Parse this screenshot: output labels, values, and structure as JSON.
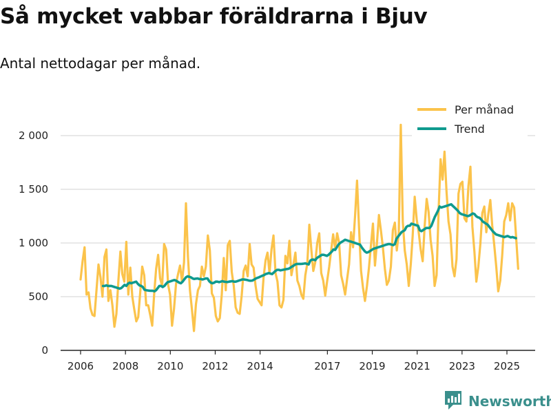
{
  "title": "Så mycket vabbar föräldrarna i Bjuv",
  "subtitle": "Antal nettodagar per månad.",
  "brand": {
    "name": "Newsworthy",
    "icon": "bar-chart-logo-icon",
    "color": "#3a8f8c"
  },
  "chart_data": {
    "type": "line",
    "title": "Så mycket vabbar föräldrarna i Bjuv",
    "subtitle": "Antal nettodagar per månad.",
    "xlabel": "",
    "ylabel": "",
    "xlim": [
      2006,
      2025.9
    ],
    "ylim": [
      0,
      2100
    ],
    "yticks": [
      0,
      500,
      1000,
      1500,
      2000
    ],
    "ytick_labels": [
      "0",
      "500",
      "1 000",
      "1 500",
      "2 000"
    ],
    "xticks": [
      2006,
      2008,
      2010,
      2012,
      2014,
      2017,
      2019,
      2021,
      2023,
      2025
    ],
    "xtick_labels": [
      "2006",
      "2008",
      "2010",
      "2012",
      "2014",
      "2017",
      "2019",
      "2021",
      "2023",
      "2025"
    ],
    "grid": true,
    "legend_position": "top-right",
    "series": [
      {
        "name": "Per månad",
        "color": "#fbc34b",
        "start": 2006.0,
        "step_months": 1,
        "values": [
          660,
          830,
          960,
          520,
          540,
          390,
          330,
          320,
          560,
          800,
          680,
          500,
          870,
          940,
          460,
          560,
          420,
          220,
          340,
          650,
          920,
          710,
          640,
          1010,
          520,
          770,
          500,
          380,
          270,
          310,
          540,
          780,
          700,
          420,
          420,
          330,
          230,
          520,
          760,
          890,
          670,
          600,
          990,
          940,
          610,
          520,
          230,
          390,
          620,
          710,
          790,
          640,
          820,
          1370,
          870,
          560,
          380,
          180,
          430,
          560,
          600,
          780,
          690,
          780,
          1070,
          930,
          530,
          490,
          320,
          270,
          300,
          520,
          860,
          560,
          980,
          1020,
          730,
          600,
          400,
          350,
          340,
          510,
          740,
          790,
          690,
          990,
          800,
          770,
          600,
          480,
          450,
          420,
          680,
          840,
          910,
          720,
          940,
          1070,
          720,
          640,
          420,
          400,
          470,
          880,
          810,
          1020,
          700,
          800,
          910,
          650,
          600,
          520,
          480,
          700,
          810,
          1170,
          940,
          740,
          820,
          1000,
          1090,
          720,
          650,
          510,
          650,
          780,
          930,
          1080,
          950,
          1090,
          1000,
          700,
          620,
          520,
          660,
          800,
          1100,
          960,
          1250,
          1580,
          1140,
          740,
          580,
          460,
          600,
          770,
          980,
          1180,
          790,
          1000,
          1260,
          1120,
          960,
          760,
          610,
          650,
          780,
          1120,
          1190,
          930,
          1100,
          2100,
          1200,
          930,
          800,
          600,
          800,
          1070,
          1430,
          1220,
          1100,
          940,
          830,
          1160,
          1410,
          1290,
          1030,
          880,
          600,
          700,
          1300,
          1780,
          1590,
          1850,
          1480,
          1200,
          1080,
          780,
          690,
          850,
          1460,
          1550,
          1570,
          1230,
          1200,
          1530,
          1710,
          1150,
          920,
          640,
          780,
          990,
          1280,
          1340,
          1100,
          1270,
          1400,
          1160,
          980,
          780,
          550,
          650,
          890,
          1200,
          1260,
          1370,
          1210,
          1370,
          1330,
          1050,
          760
        ],
        "x_range": [
          2006.0,
          2025.5
        ]
      },
      {
        "name": "Trend",
        "color": "#0f9a8e",
        "start": 2007.0,
        "step_months": 1,
        "values": [
          600,
          600,
          605,
          600,
          600,
          600,
          595,
          590,
          585,
          580,
          575,
          580,
          595,
          610,
          600,
          620,
          630,
          625,
          630,
          635,
          640,
          620,
          605,
          600,
          590,
          565,
          560,
          558,
          556,
          555,
          555,
          550,
          560,
          580,
          600,
          600,
          590,
          600,
          620,
          635,
          640,
          645,
          650,
          655,
          650,
          640,
          630,
          625,
          640,
          660,
          680,
          690,
          685,
          680,
          670,
          665,
          668,
          670,
          665,
          665,
          660,
          665,
          670,
          670,
          645,
          630,
          625,
          630,
          640,
          640,
          635,
          640,
          645,
          640,
          638,
          636,
          640,
          642,
          645,
          640,
          640,
          645,
          650,
          655,
          660,
          660,
          658,
          655,
          650,
          648,
          650,
          658,
          668,
          675,
          680,
          688,
          695,
          700,
          710,
          715,
          720,
          715,
          710,
          725,
          740,
          750,
          750,
          745,
          748,
          752,
          755,
          758,
          760,
          770,
          780,
          790,
          800,
          805,
          805,
          805,
          806,
          808,
          810,
          805,
          800,
          835,
          845,
          845,
          840,
          860,
          870,
          880,
          890,
          890,
          885,
          880,
          890,
          905,
          920,
          940,
          935,
          960,
          985,
          1000,
          1010,
          1020,
          1030,
          1025,
          1020,
          1015,
          1010,
          1005,
          1000,
          995,
          990,
          985,
          960,
          940,
          920,
          910,
          915,
          925,
          935,
          945,
          950,
          955,
          960,
          965,
          970,
          975,
          980,
          985,
          990,
          990,
          985,
          980,
          990,
          1040,
          1060,
          1080,
          1100,
          1110,
          1120,
          1150,
          1160,
          1160,
          1180,
          1175,
          1170,
          1165,
          1160,
          1120,
          1110,
          1120,
          1130,
          1140,
          1140,
          1140,
          1160,
          1200,
          1240,
          1270,
          1300,
          1340,
          1330,
          1335,
          1340,
          1345,
          1350,
          1355,
          1360,
          1345,
          1330,
          1315,
          1300,
          1280,
          1270,
          1265,
          1260,
          1255,
          1250,
          1255,
          1265,
          1275,
          1270,
          1250,
          1240,
          1235,
          1220,
          1200,
          1190,
          1180,
          1170,
          1150,
          1130,
          1110,
          1095,
          1080,
          1075,
          1070,
          1065,
          1060,
          1055,
          1060,
          1065,
          1058,
          1052,
          1055,
          1050,
          1045
        ],
        "x_range": [
          2007.0,
          2025.4
        ]
      }
    ]
  }
}
